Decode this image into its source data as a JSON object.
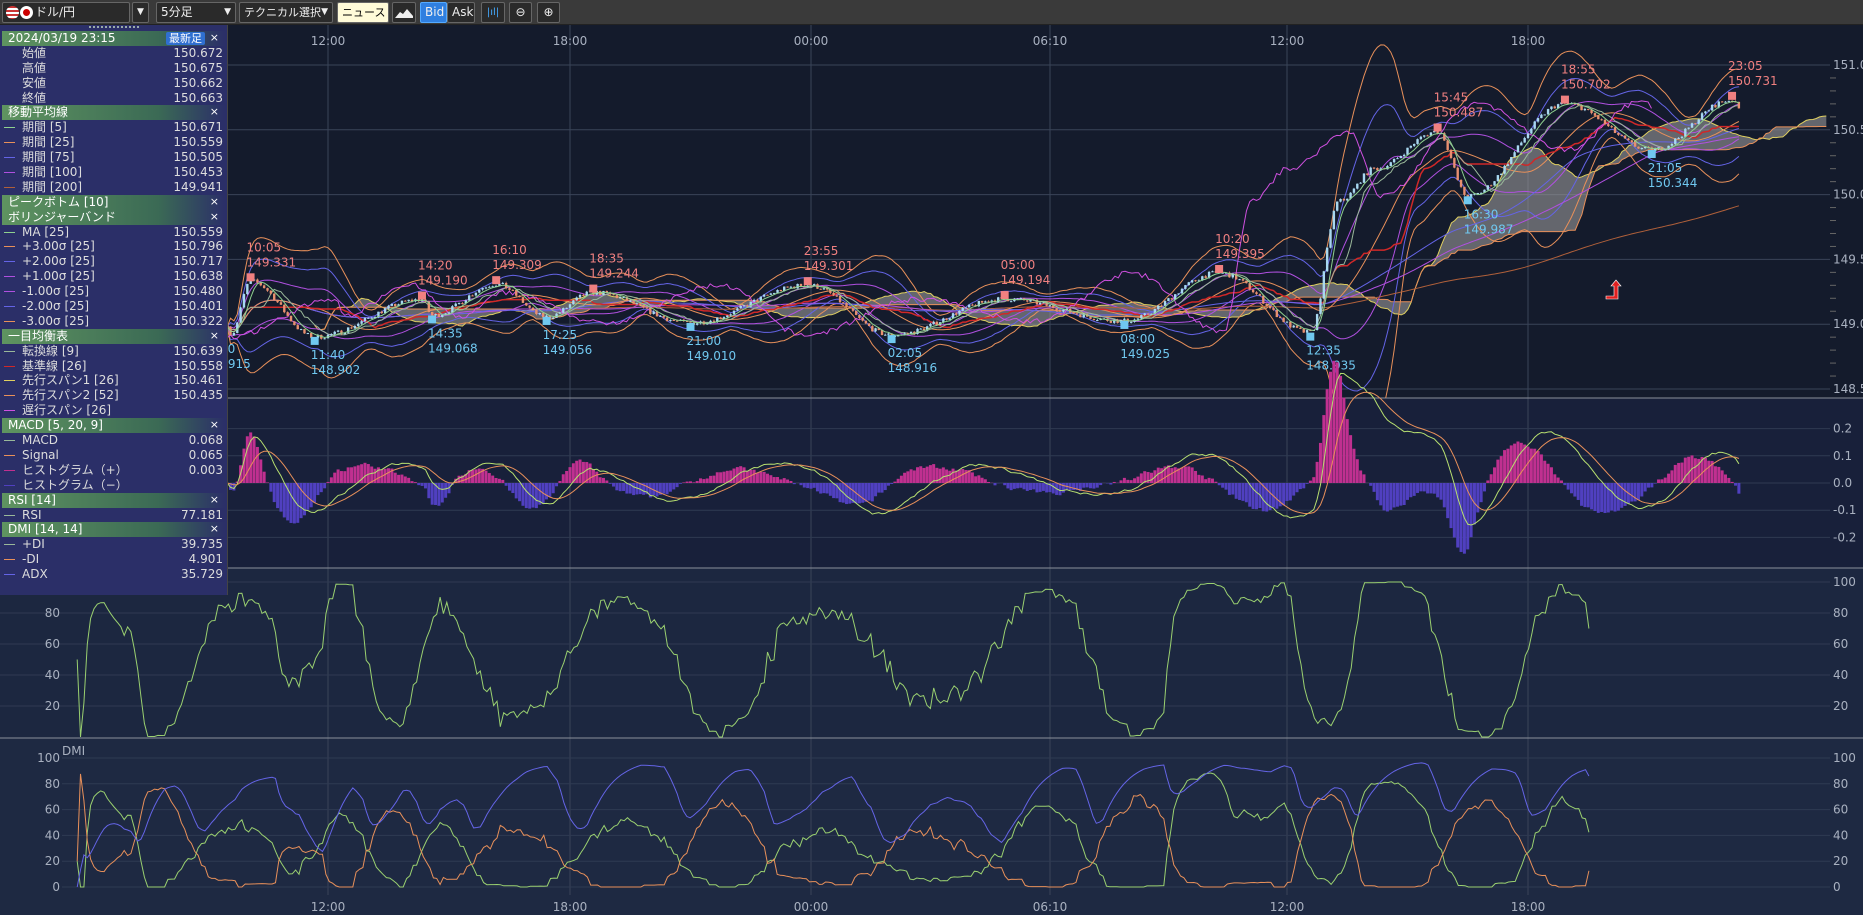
{
  "toolbar": {
    "pair": "ドル/円",
    "timeframe": "5分足",
    "technical": "テクニカル選択",
    "news": "ニュース",
    "bid": "Bid",
    "ask": "Ask"
  },
  "legend": {
    "date": "2024/03/19 23:15",
    "latest": "最新足",
    "ohlc": [
      {
        "label": "始値",
        "value": "150.672"
      },
      {
        "label": "高値",
        "value": "150.675"
      },
      {
        "label": "安値",
        "value": "150.662"
      },
      {
        "label": "終値",
        "value": "150.663"
      }
    ],
    "sections": [
      {
        "title": "移動平均線",
        "rows": [
          {
            "label": "期間 [5]",
            "value": "150.671",
            "color": "#8fd18f"
          },
          {
            "label": "期間 [25]",
            "value": "150.559",
            "color": "#e8905a"
          },
          {
            "label": "期間 [75]",
            "value": "150.505",
            "color": "#6464e6"
          },
          {
            "label": "期間 [100]",
            "value": "150.453",
            "color": "#b050e0"
          },
          {
            "label": "期間 [200]",
            "value": "149.941",
            "color": "#b0603a"
          }
        ]
      },
      {
        "title": "ピークボトム [10]",
        "rows": []
      },
      {
        "title": "ボリンジャーバンド",
        "rows": [
          {
            "label": "MA [25]",
            "value": "150.559",
            "color": "#8fd18f"
          },
          {
            "label": "+3.00σ [25]",
            "value": "150.796",
            "color": "#e8905a"
          },
          {
            "label": "+2.00σ [25]",
            "value": "150.717",
            "color": "#6464e6"
          },
          {
            "label": "+1.00σ [25]",
            "value": "150.638",
            "color": "#b050e0"
          },
          {
            "label": "-1.00σ [25]",
            "value": "150.480",
            "color": "#b050e0"
          },
          {
            "label": "-2.00σ [25]",
            "value": "150.401",
            "color": "#6464e6"
          },
          {
            "label": "-3.00σ [25]",
            "value": "150.322",
            "color": "#e8905a"
          }
        ]
      },
      {
        "title": "一目均衡表",
        "rows": [
          {
            "label": "転換線 [9]",
            "value": "150.639",
            "color": "#9ab89a"
          },
          {
            "label": "基準線 [26]",
            "value": "150.558",
            "color": "#d02828"
          },
          {
            "label": "先行スパン1 [26]",
            "value": "150.461",
            "color": "#e0d060"
          },
          {
            "label": "先行スパン2 [52]",
            "value": "150.435",
            "color": "#e8905a"
          },
          {
            "label": "遅行スパン [26]",
            "value": "",
            "color": "#d050e0"
          }
        ]
      },
      {
        "title": "MACD [5, 20, 9]",
        "rows": [
          {
            "label": "MACD",
            "value": "0.068",
            "color": "#9ab89a"
          },
          {
            "label": "Signal",
            "value": "0.065",
            "color": "#e8905a"
          },
          {
            "label": "ヒストグラム（+）",
            "value": "0.003",
            "color": "#c03090"
          },
          {
            "label": "ヒストグラム（−）",
            "value": "",
            "color": "#5040c0"
          }
        ]
      },
      {
        "title": "RSI [14]",
        "rows": [
          {
            "label": "RSI",
            "value": "77.181",
            "color": "#9ab89a"
          }
        ]
      },
      {
        "title": "DMI [14, 14]",
        "rows": [
          {
            "label": "+DI",
            "value": "39.735",
            "color": "#9ab89a"
          },
          {
            "label": "-DI",
            "value": "4.901",
            "color": "#e8905a"
          },
          {
            "label": "ADX",
            "value": "35.729",
            "color": "#6464e6"
          }
        ]
      }
    ]
  },
  "chart_data": {
    "type": "line",
    "instrument": "ドル/円",
    "timeframe": "5分足",
    "x_ticks": [
      "12:00",
      "18:00",
      "00:00",
      "06:10",
      "12:00",
      "18:00"
    ],
    "price_ticks": [
      "151.0",
      "150.5",
      "150.0",
      "149.5",
      "149.0",
      "148.5"
    ],
    "macd_ticks": [
      "0.2",
      "0.1",
      "0.0",
      "-0.1",
      "-0.2"
    ],
    "rsi_ticks": [
      "100",
      "80",
      "60",
      "40",
      "20"
    ],
    "dmi_ticks": [
      "100",
      "80",
      "60",
      "40",
      "20",
      "0"
    ],
    "rsi_label": "RSI",
    "dmi_label": "DMI",
    "partial_bottom": {
      "time": "00",
      "price": ".915"
    },
    "peaks": [
      {
        "time": "10:05",
        "price": "149.331"
      },
      {
        "time": "14:20",
        "price": "149.190"
      },
      {
        "time": "16:10",
        "price": "149.309"
      },
      {
        "time": "18:35",
        "price": "149.244"
      },
      {
        "time": "23:55",
        "price": "149.301"
      },
      {
        "time": "05:00",
        "price": "149.194"
      },
      {
        "time": "10:20",
        "price": "149.395"
      },
      {
        "time": "15:45",
        "price": "150.487"
      },
      {
        "time": "18:55",
        "price": "150.702"
      },
      {
        "time": "23:05",
        "price": "150.731"
      }
    ],
    "bottoms": [
      {
        "time": "11:40",
        "price": "148.902"
      },
      {
        "time": "14:35",
        "price": "149.068"
      },
      {
        "time": "17:25",
        "price": "149.056"
      },
      {
        "time": "21:00",
        "price": "149.010"
      },
      {
        "time": "02:05",
        "price": "148.916"
      },
      {
        "time": "08:00",
        "price": "149.025"
      },
      {
        "time": "12:35",
        "price": "148.935"
      },
      {
        "time": "16:30",
        "price": "149.987"
      },
      {
        "time": "21:05",
        "price": "150.344"
      }
    ],
    "colors": {
      "peak": "#f08080",
      "bottom": "#70c8f0",
      "bg": "#141b2c",
      "panel": "#1c2840"
    }
  }
}
